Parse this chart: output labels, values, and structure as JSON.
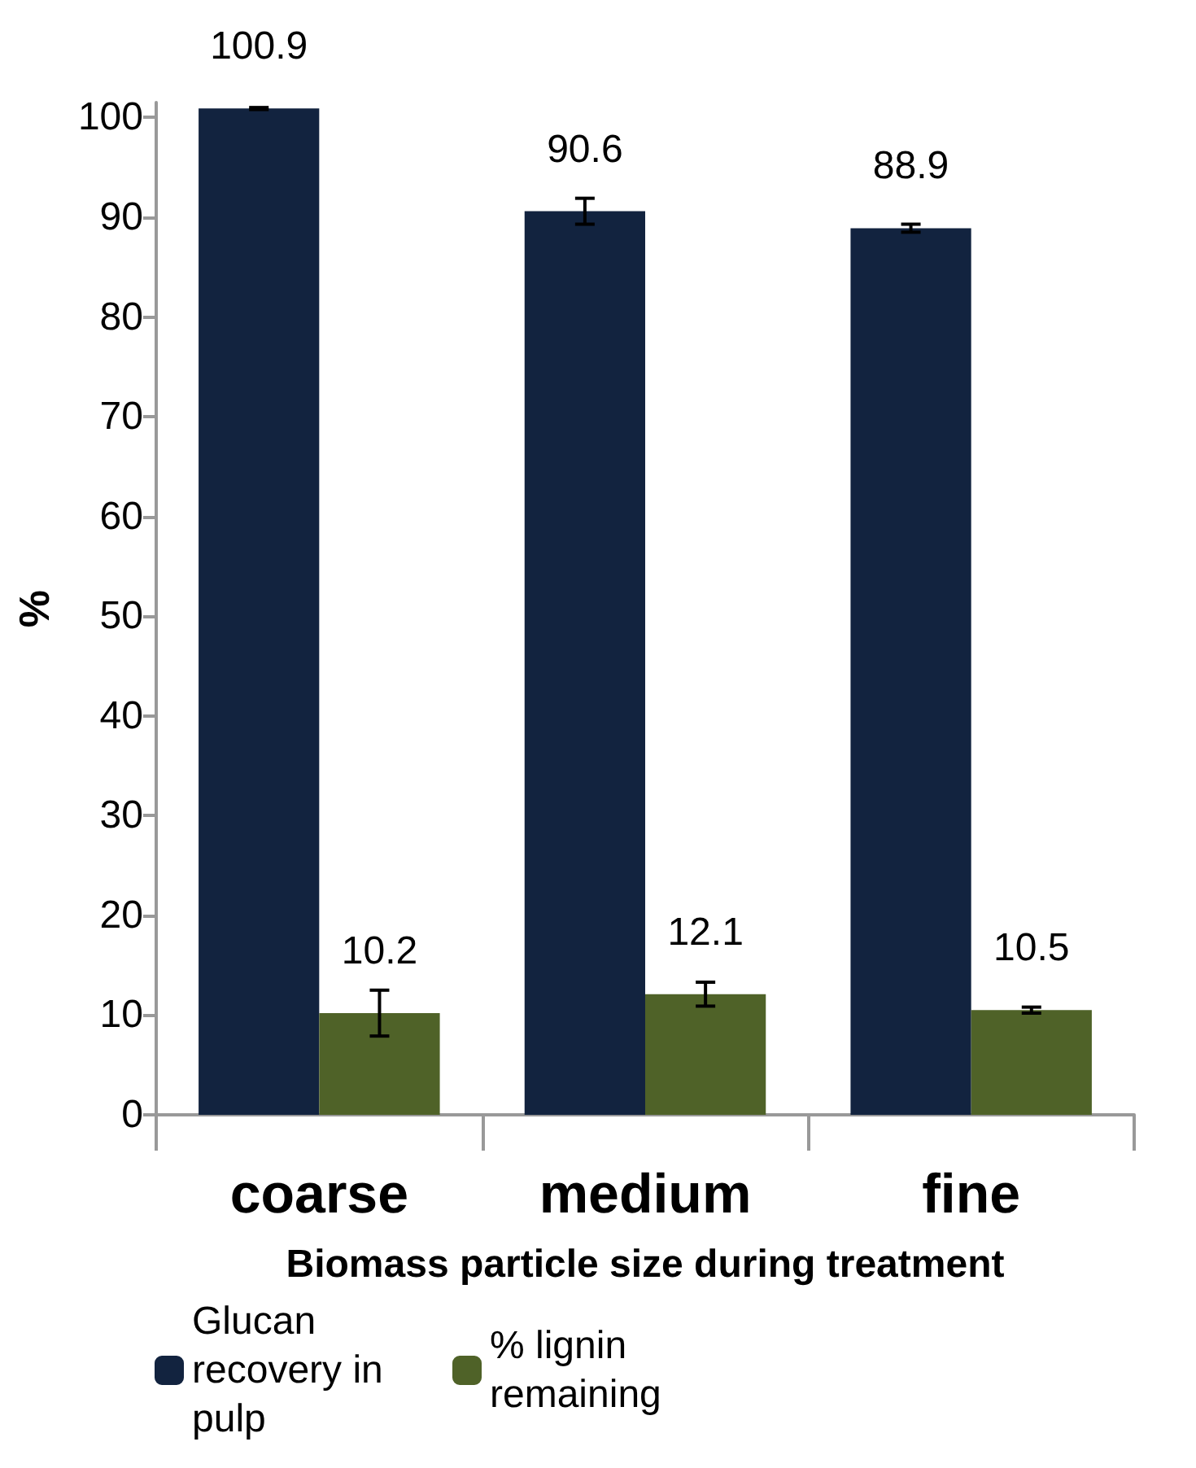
{
  "chart_data": {
    "type": "bar",
    "xlabel": "Biomass particle size during treatment",
    "ylabel": "%",
    "categories": [
      "coarse",
      "medium",
      "fine"
    ],
    "series": [
      {
        "name": "Glucan recovery in pulp",
        "color": "#12233f",
        "values": [
          100.9,
          90.6,
          88.9
        ],
        "errors": [
          0.1,
          1.3,
          0.4
        ]
      },
      {
        "name": "% lignin remaining",
        "color": "#4f6228",
        "values": [
          10.2,
          12.1,
          10.5
        ],
        "errors": [
          2.3,
          1.2,
          0.3
        ]
      }
    ],
    "ylim": [
      0,
      101.5
    ],
    "yticks": [
      0,
      10,
      20,
      30,
      40,
      50,
      60,
      70,
      80,
      90,
      100
    ],
    "data_labels": true,
    "grid": false,
    "legend": "bottom"
  }
}
